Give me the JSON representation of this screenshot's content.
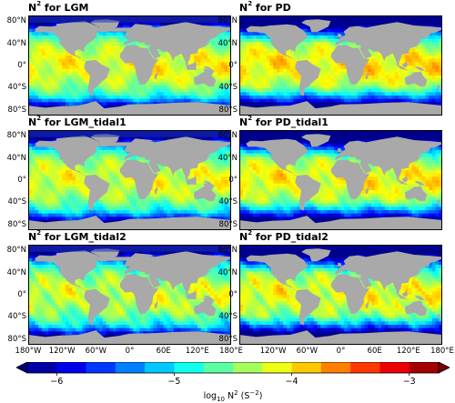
{
  "panels": [
    {
      "id": "lgm",
      "title_base": "N",
      "title_sup": "2",
      "title_rest": " for LGM",
      "variant": "lgm",
      "tide": 0
    },
    {
      "id": "pd",
      "title_base": "N",
      "title_sup": "2",
      "title_rest": " for PD",
      "variant": "pd",
      "tide": 0
    },
    {
      "id": "lgm_tidal1",
      "title_base": "N",
      "title_sup": "2",
      "title_rest": " for LGM_tidal1",
      "variant": "lgm",
      "tide": 1
    },
    {
      "id": "pd_tidal1",
      "title_base": "N",
      "title_sup": "2",
      "title_rest": " for PD_tidal1",
      "variant": "pd",
      "tide": 1
    },
    {
      "id": "lgm_tidal2",
      "title_base": "N",
      "title_sup": "2",
      "title_rest": " for LGM_tidal2",
      "variant": "lgm",
      "tide": 2
    },
    {
      "id": "pd_tidal2",
      "title_base": "N",
      "title_sup": "2",
      "title_rest": " for PD_tidal2",
      "variant": "pd",
      "tide": 2
    }
  ],
  "lat_ticks": [
    "80°N",
    "40°N",
    "0°",
    "40°S",
    "80°S"
  ],
  "lon_ticks": [
    "180°W",
    "120°W",
    "60°W",
    "0°",
    "60E",
    "120°E",
    "180°E"
  ],
  "colorbar": {
    "ticks": [
      "−6",
      "−5",
      "−4",
      "−3"
    ],
    "tick_values": [
      -6,
      -5,
      -4,
      -3
    ],
    "range": [
      -6.25,
      -2.75
    ],
    "label_base": "log",
    "label_sub": "10",
    "label_rest": " N",
    "label_sup": "2",
    "label_units": " (S",
    "label_units_sup": "−2",
    "label_close": ")",
    "colormap": "jet",
    "land_color": "#a9a9a9"
  }
}
